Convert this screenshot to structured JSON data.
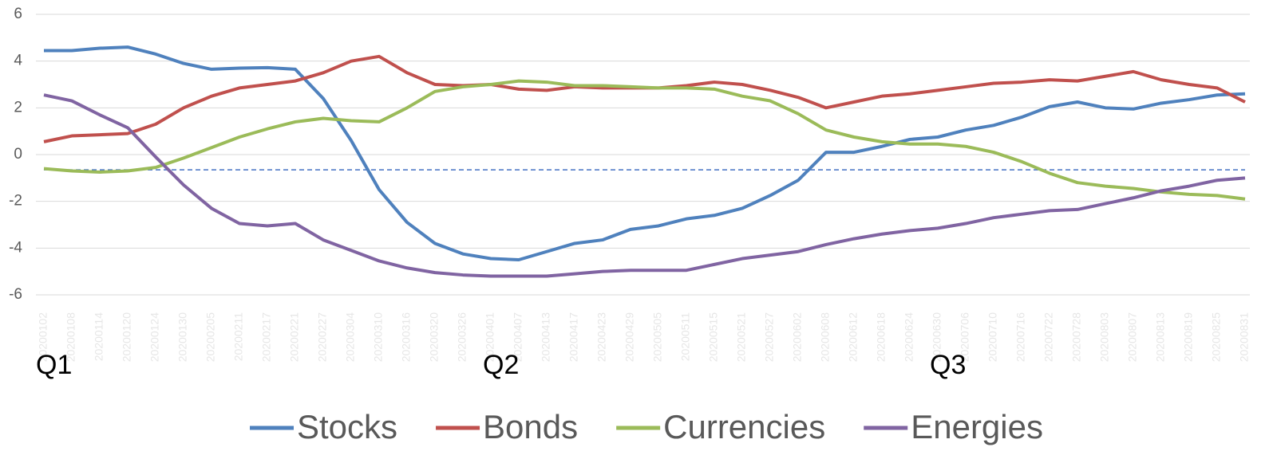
{
  "chart_data": {
    "type": "line",
    "categories": [
      "20200102",
      "20200108",
      "20200114",
      "20200120",
      "20200124",
      "20200130",
      "20200205",
      "20200211",
      "20200217",
      "20200221",
      "20200227",
      "20200304",
      "20200310",
      "20200316",
      "20200320",
      "20200326",
      "20200401",
      "20200407",
      "20200413",
      "20200417",
      "20200423",
      "20200429",
      "20200505",
      "20200511",
      "20200515",
      "20200521",
      "20200527",
      "20200602",
      "20200608",
      "20200612",
      "20200618",
      "20200624",
      "20200630",
      "20200706",
      "20200710",
      "20200716",
      "20200722",
      "20200728",
      "20200803",
      "20200807",
      "20200813",
      "20200819",
      "20200825",
      "20200831"
    ],
    "series": [
      {
        "name": "Stocks",
        "color": "#4f81bd",
        "values": [
          4.45,
          4.45,
          4.55,
          4.6,
          4.3,
          3.9,
          3.65,
          3.7,
          3.72,
          3.65,
          2.4,
          0.6,
          -1.5,
          -2.9,
          -3.8,
          -4.25,
          -4.45,
          -4.5,
          -4.15,
          -3.8,
          -3.65,
          -3.2,
          -3.05,
          -2.75,
          -2.6,
          -2.3,
          -1.75,
          -1.1,
          0.1,
          0.1,
          0.35,
          0.65,
          0.75,
          1.05,
          1.25,
          1.6,
          2.05,
          2.25,
          2.0,
          1.95,
          2.2,
          2.35,
          2.55,
          2.6
        ]
      },
      {
        "name": "Bonds",
        "color": "#c0504d",
        "values": [
          0.55,
          0.8,
          0.85,
          0.9,
          1.3,
          2.0,
          2.5,
          2.85,
          3.0,
          3.15,
          3.5,
          4.0,
          4.2,
          3.5,
          3.0,
          2.95,
          3.0,
          2.8,
          2.75,
          2.9,
          2.85,
          2.85,
          2.85,
          2.95,
          3.1,
          3.0,
          2.75,
          2.45,
          2.0,
          2.25,
          2.5,
          2.6,
          2.75,
          2.9,
          3.05,
          3.1,
          3.2,
          3.15,
          3.35,
          3.55,
          3.2,
          3.0,
          2.85,
          2.25
        ]
      },
      {
        "name": "Currencies",
        "color": "#9bbb59",
        "values": [
          -0.6,
          -0.7,
          -0.75,
          -0.7,
          -0.55,
          -0.15,
          0.3,
          0.75,
          1.1,
          1.4,
          1.55,
          1.45,
          1.4,
          2.0,
          2.7,
          2.9,
          3.0,
          3.15,
          3.1,
          2.95,
          2.95,
          2.9,
          2.85,
          2.85,
          2.8,
          2.5,
          2.3,
          1.75,
          1.05,
          0.75,
          0.55,
          0.45,
          0.45,
          0.35,
          0.1,
          -0.3,
          -0.8,
          -1.2,
          -1.35,
          -1.45,
          -1.6,
          -1.7,
          -1.75,
          -1.9
        ]
      },
      {
        "name": "Energies",
        "color": "#8064a2",
        "values": [
          2.55,
          2.3,
          1.7,
          1.15,
          -0.1,
          -1.3,
          -2.3,
          -2.95,
          -3.05,
          -2.95,
          -3.65,
          -4.1,
          -4.55,
          -4.85,
          -5.05,
          -5.15,
          -5.2,
          -5.2,
          -5.2,
          -5.1,
          -5.0,
          -4.95,
          -4.95,
          -4.95,
          -4.7,
          -4.45,
          -4.3,
          -4.15,
          -3.85,
          -3.6,
          -3.4,
          -3.25,
          -3.15,
          -2.95,
          -2.7,
          -2.55,
          -2.4,
          -2.35,
          -2.1,
          -1.85,
          -1.55,
          -1.35,
          -1.1,
          -1.0
        ]
      }
    ],
    "ylim": [
      -6,
      6
    ],
    "yticks": [
      -6,
      -4,
      -2,
      0,
      2,
      4,
      6
    ],
    "grid": true,
    "hline": {
      "value": -0.65,
      "color": "#4472c4",
      "dashed": true
    },
    "annotations": [
      {
        "text": "Q1",
        "x": "20200102"
      },
      {
        "text": "Q2",
        "x": "20200401"
      },
      {
        "text": "Q3",
        "x": "20200630"
      }
    ],
    "legend": "bottom"
  }
}
